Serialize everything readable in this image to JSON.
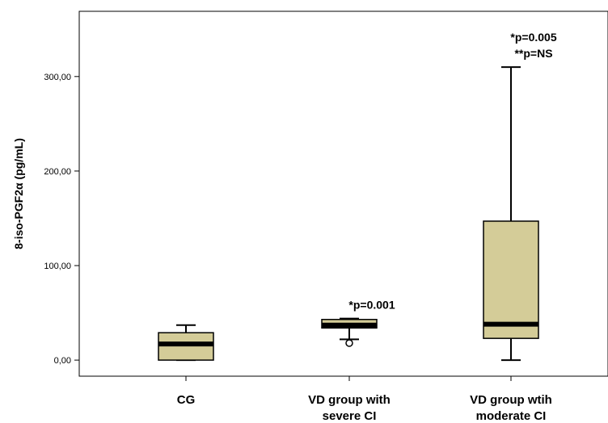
{
  "chart_data": {
    "type": "boxplot",
    "title": "",
    "xlabel": "",
    "ylabel": "8-iso-PGF2α (pg/mL)",
    "ylim": [
      -17,
      369
    ],
    "yticks": [
      0,
      100,
      200,
      300
    ],
    "ytick_labels": [
      "0,00",
      "100,00",
      "200,00",
      "300,00"
    ],
    "categories": [
      [
        "CG"
      ],
      [
        "VD group with",
        "severe CI"
      ],
      [
        "VD group wtih",
        "moderate CI"
      ]
    ],
    "boxes": [
      {
        "whisker_low": 0,
        "q1": 0,
        "median": 17,
        "q3": 29,
        "whisker_high": 37,
        "outliers": []
      },
      {
        "whisker_low": 22,
        "q1": 34,
        "median": 37,
        "q3": 43,
        "whisker_high": 44,
        "outliers": [
          18
        ]
      },
      {
        "whisker_low": 0,
        "q1": 23,
        "median": 38,
        "q3": 147,
        "whisker_high": 310,
        "outliers": []
      }
    ],
    "annotations": [
      {
        "box": 1,
        "lines": [
          "*p=0.001"
        ]
      },
      {
        "box": 2,
        "lines": [
          "*p=0.005",
          "**p=NS"
        ]
      }
    ],
    "box_color": "#d4cc98",
    "median_color": "#000000",
    "grid": false,
    "legend": "none"
  }
}
